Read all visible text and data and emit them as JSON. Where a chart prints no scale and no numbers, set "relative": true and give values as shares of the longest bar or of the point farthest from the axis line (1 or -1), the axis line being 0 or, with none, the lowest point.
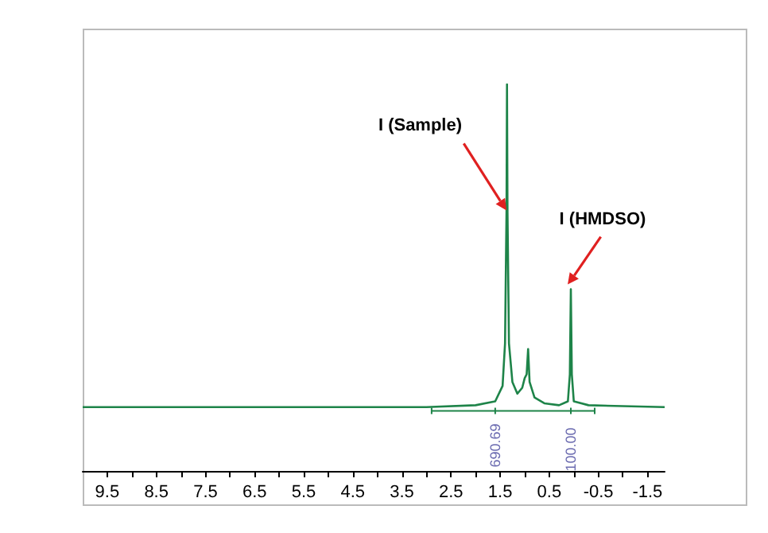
{
  "chart_data": {
    "type": "line",
    "relative": true,
    "grid": false,
    "marker": "none",
    "line_style": "solid",
    "xlim": [
      10,
      -1.85
    ],
    "xticks": [
      9.5,
      8.5,
      7.5,
      6.5,
      5.5,
      4.5,
      3.5,
      2.5,
      1.5,
      0.5,
      -0.5,
      -1.5
    ],
    "series": [
      {
        "color": "#1e8449",
        "x": [
          10,
          3,
          2,
          1.6,
          1.45,
          1.4,
          1.37,
          1.36,
          1.35,
          1.32,
          1.25,
          1.15,
          1.05,
          1.0,
          0.96,
          0.93,
          0.9,
          0.8,
          0.6,
          0.3,
          0.12,
          0.08,
          0.06,
          0.04,
          0.0,
          -0.3,
          -1.85
        ],
        "values": [
          0.165,
          0.165,
          0.17,
          0.18,
          0.22,
          0.33,
          0.67,
          1,
          0.67,
          0.33,
          0.23,
          0.2,
          0.215,
          0.24,
          0.25,
          0.315,
          0.23,
          0.19,
          0.175,
          0.17,
          0.18,
          0.25,
          0.47,
          0.25,
          0.18,
          0.17,
          0.165
        ]
      }
    ],
    "annotations": [
      {
        "text": "I (Sample)",
        "x": 1.37,
        "y": 0.67
      },
      {
        "text": "I (HMDSO)",
        "x": 0.06,
        "y": 0.47
      },
      {
        "text": "690.69",
        "x": 1.6,
        "y": 0.18
      },
      {
        "text": "100.00",
        "x": 0.06,
        "y": 0.17
      }
    ]
  }
}
